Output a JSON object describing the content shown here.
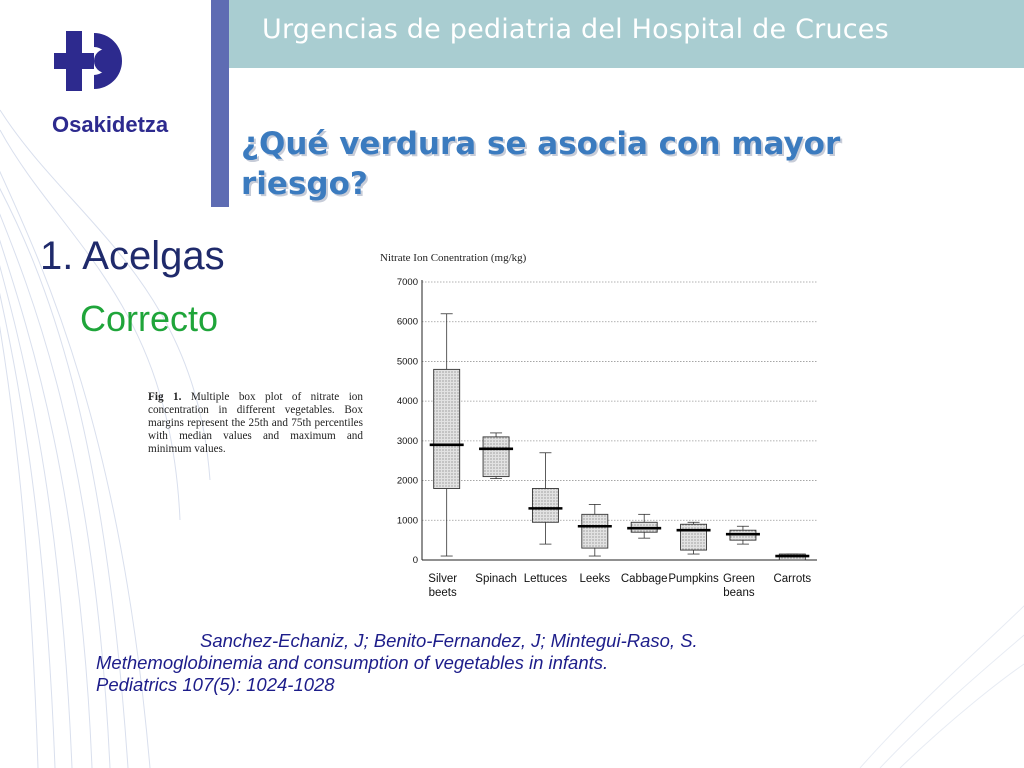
{
  "header": {
    "title": "Urgencias de pediatria del Hospital de Cruces",
    "logo_text": "Osakidetza",
    "logo_icon": "osakidetza-logo-icon"
  },
  "slide": {
    "question": "¿Qué verdura se asocia con mayor riesgo?",
    "answer": "1. Acelgas",
    "feedback": "Correcto"
  },
  "figure": {
    "caption_label": "Fig 1.",
    "caption_text": "Multiple box plot of nitrate ion concentration in different vegetables. Box margins represent the 25th and 75th percentiles with median values and maximum and minimum values."
  },
  "citation": {
    "authors": "Sanchez-Echaniz, J; Benito-Fernandez, J; Mintegui-Raso, S.",
    "title": "Methemoglobinemia and consumption of vegetables in infants.",
    "journal": "Pediatrics 107(5): 1024-1028"
  },
  "colors": {
    "header_band": "#a9cdd1",
    "accent_bar": "#5e6cb3",
    "logo": "#2d2a8e",
    "question": "#3b7bbf",
    "feedback": "#1fa53a",
    "citation": "#1d1d8a"
  },
  "chart_data": {
    "type": "boxplot",
    "title": "Nitrate Ion Conentration (mg/kg)",
    "ylim": [
      0,
      7000
    ],
    "yticks": [
      "0",
      "1000",
      "2000",
      "3000",
      "4000",
      "5000",
      "6000",
      "7000"
    ],
    "grid": true,
    "categories": [
      [
        "Silver",
        "beets"
      ],
      [
        "Spinach"
      ],
      [
        "Lettuces"
      ],
      [
        "Leeks"
      ],
      [
        "Cabbage"
      ],
      [
        "Pumpkins"
      ],
      [
        "Green",
        "beans"
      ],
      [
        "Carrots"
      ]
    ],
    "boxes": [
      {
        "min": 100,
        "q1": 1800,
        "median": 2900,
        "q3": 4800,
        "max": 6200
      },
      {
        "min": 2050,
        "q1": 2100,
        "median": 2800,
        "q3": 3100,
        "max": 3200
      },
      {
        "min": 400,
        "q1": 950,
        "median": 1300,
        "q3": 1800,
        "max": 2700
      },
      {
        "min": 100,
        "q1": 300,
        "median": 850,
        "q3": 1150,
        "max": 1400
      },
      {
        "min": 550,
        "q1": 700,
        "median": 800,
        "q3": 950,
        "max": 1150
      },
      {
        "min": 150,
        "q1": 250,
        "median": 750,
        "q3": 900,
        "max": 950
      },
      {
        "min": 400,
        "q1": 500,
        "median": 650,
        "q3": 750,
        "max": 850
      },
      {
        "min": 0,
        "q1": 0,
        "median": 100,
        "q3": 150,
        "max": 150
      }
    ]
  }
}
